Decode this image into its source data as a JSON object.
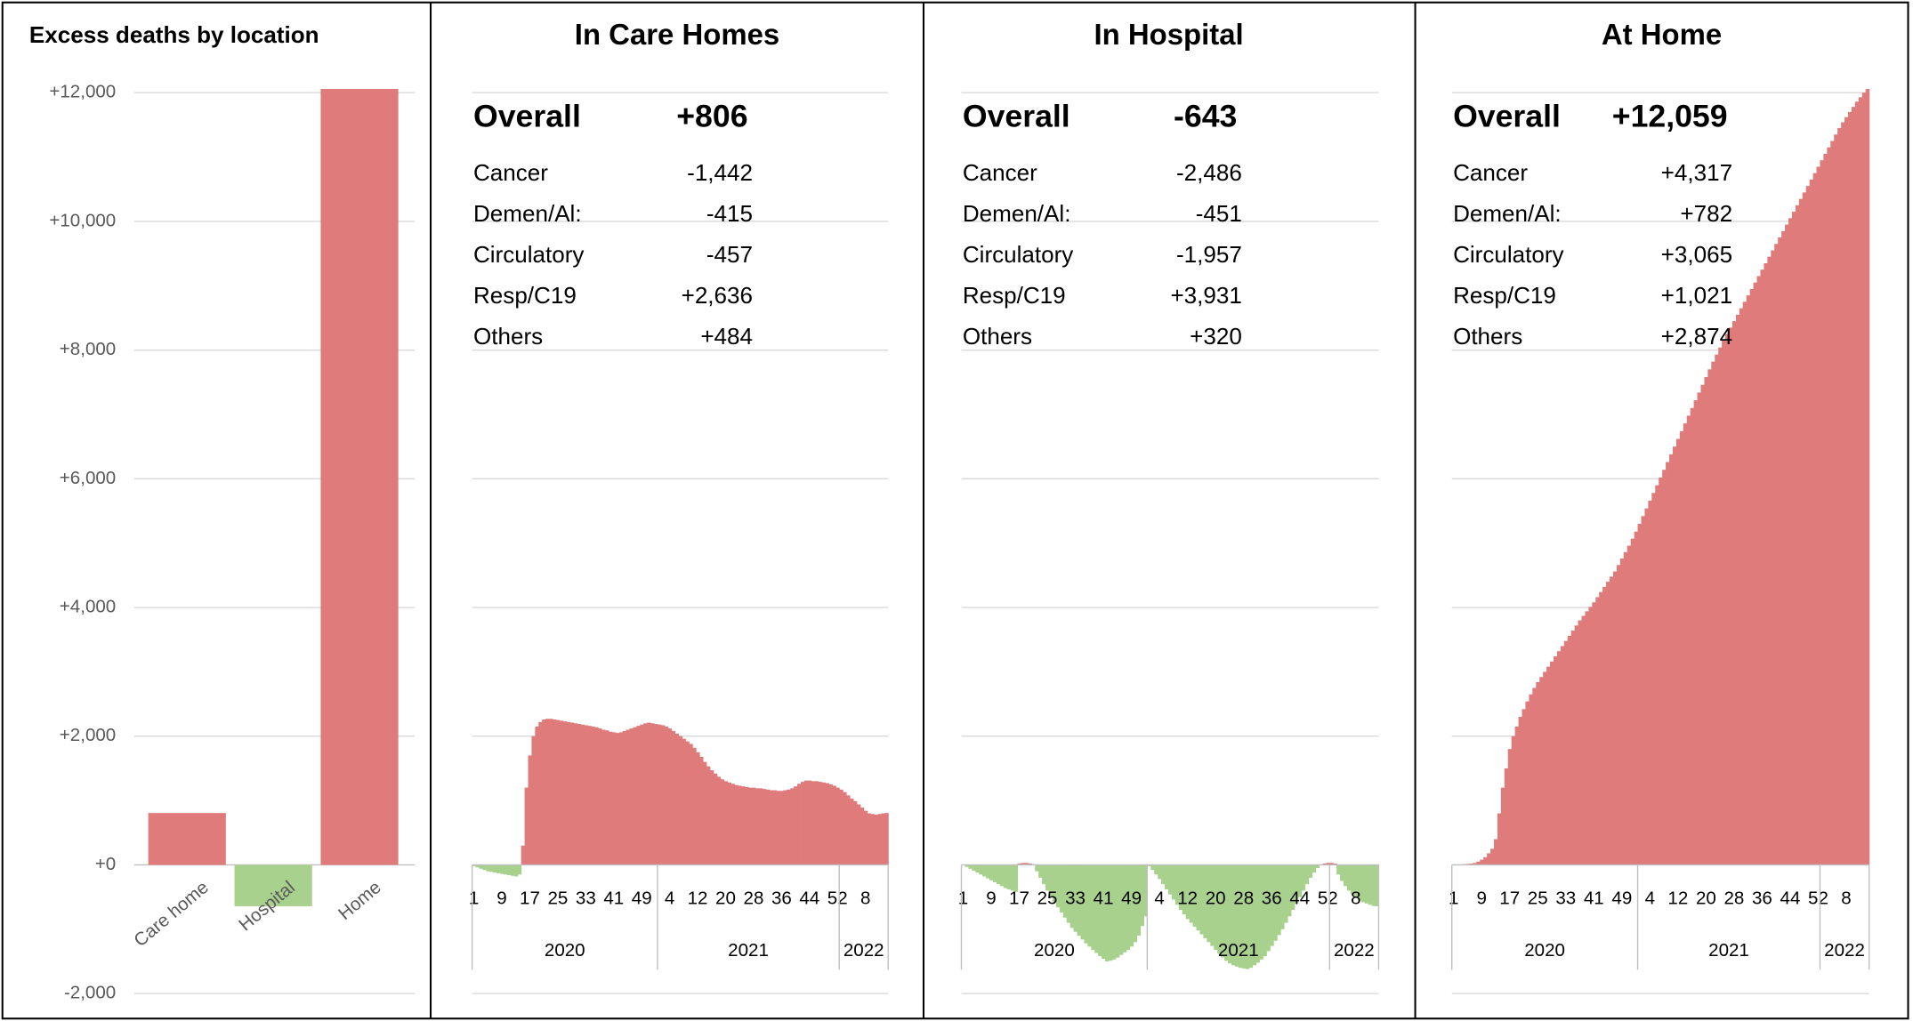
{
  "chart_data": [
    {
      "type": "bar",
      "title": "Excess deaths by location",
      "categories": [
        "Care home",
        "Hospital",
        "Home"
      ],
      "values": [
        806,
        -643,
        12059
      ],
      "colors": {
        "positive": "#e07b7b",
        "negative": "#a9d18e"
      },
      "ylim": [
        -2000,
        12000
      ],
      "yticks": [
        {
          "value": -2000,
          "label": "-2,000"
        },
        {
          "value": 0,
          "label": "+0"
        },
        {
          "value": 2000,
          "label": "+2,000"
        },
        {
          "value": 4000,
          "label": "+4,000"
        },
        {
          "value": 6000,
          "label": "+6,000"
        },
        {
          "value": 8000,
          "label": "+8,000"
        },
        {
          "value": 10000,
          "label": "+10,000"
        },
        {
          "value": 12000,
          "label": "+12,000"
        }
      ],
      "grid": true
    },
    {
      "type": "area",
      "title": "In Care Homes",
      "stats": {
        "overall_label": "Overall",
        "overall": "+806",
        "rows": [
          {
            "label": "Cancer",
            "value": "-1,442"
          },
          {
            "label": "Demen/Al:",
            "value": "-415"
          },
          {
            "label": "Circulatory",
            "value": "-457"
          },
          {
            "label": "Resp/C19",
            "value": "+2,636"
          },
          {
            "label": "Others",
            "value": "+484"
          }
        ]
      },
      "categories": [
        "1",
        null,
        null,
        null,
        null,
        null,
        null,
        null,
        "9",
        null,
        null,
        null,
        null,
        null,
        null,
        null,
        "17",
        null,
        null,
        null,
        null,
        null,
        null,
        null,
        "25",
        null,
        null,
        null,
        null,
        null,
        null,
        null,
        "33",
        null,
        null,
        null,
        null,
        null,
        null,
        null,
        "41",
        null,
        null,
        null,
        null,
        null,
        null,
        null,
        "49",
        null,
        null,
        null,
        null,
        null,
        null,
        null,
        "4",
        null,
        null,
        null,
        null,
        null,
        null,
        null,
        "12",
        null,
        null,
        null,
        null,
        null,
        null,
        null,
        "20",
        null,
        null,
        null,
        null,
        null,
        null,
        null,
        "28",
        null,
        null,
        null,
        null,
        null,
        null,
        null,
        "36",
        null,
        null,
        null,
        null,
        null,
        null,
        null,
        "44",
        null,
        null,
        null,
        null,
        null,
        null,
        null,
        "52",
        null,
        null,
        null,
        null,
        null,
        null,
        null,
        "8",
        null,
        null,
        null,
        null,
        null,
        null
      ],
      "year_groups": [
        {
          "label": "2020",
          "count": 53
        },
        {
          "label": "2021",
          "count": 52
        },
        {
          "label": "2022",
          "count": 14
        }
      ],
      "values": [
        -20,
        -40,
        -60,
        -80,
        -100,
        -110,
        -120,
        -130,
        -140,
        -150,
        -160,
        -170,
        -180,
        -150,
        300,
        1200,
        1700,
        2000,
        2150,
        2220,
        2260,
        2270,
        2270,
        2260,
        2250,
        2240,
        2230,
        2220,
        2210,
        2200,
        2190,
        2180,
        2170,
        2160,
        2150,
        2140,
        2120,
        2100,
        2090,
        2070,
        2060,
        2050,
        2060,
        2080,
        2100,
        2120,
        2140,
        2160,
        2180,
        2200,
        2210,
        2200,
        2190,
        2180,
        2170,
        2150,
        2120,
        2080,
        2040,
        2000,
        1960,
        1920,
        1880,
        1820,
        1750,
        1680,
        1600,
        1530,
        1470,
        1420,
        1370,
        1330,
        1300,
        1280,
        1260,
        1240,
        1230,
        1220,
        1210,
        1200,
        1200,
        1190,
        1190,
        1180,
        1170,
        1160,
        1160,
        1150,
        1150,
        1160,
        1170,
        1190,
        1220,
        1260,
        1290,
        1310,
        1310,
        1300,
        1300,
        1290,
        1280,
        1270,
        1250,
        1230,
        1200,
        1170,
        1130,
        1080,
        1030,
        990,
        940,
        890,
        840,
        800,
        790,
        780,
        790,
        800,
        806
      ],
      "colors": {
        "positive": "#e07b7b",
        "negative": "#a9d18e"
      },
      "ylim": [
        -2000,
        12000
      ],
      "yticks": [
        -2000,
        0,
        2000,
        4000,
        6000,
        8000,
        10000,
        12000
      ],
      "grid": true
    },
    {
      "type": "area",
      "title": "In Hospital",
      "stats": {
        "overall_label": "Overall",
        "overall": "-643",
        "rows": [
          {
            "label": "Cancer",
            "value": "-2,486"
          },
          {
            "label": "Demen/Al:",
            "value": "-451"
          },
          {
            "label": "Circulatory",
            "value": "-1,957"
          },
          {
            "label": "Resp/C19",
            "value": "+3,931"
          },
          {
            "label": "Others",
            "value": "+320"
          }
        ]
      },
      "categories": [
        "1",
        null,
        null,
        null,
        null,
        null,
        null,
        null,
        "9",
        null,
        null,
        null,
        null,
        null,
        null,
        null,
        "17",
        null,
        null,
        null,
        null,
        null,
        null,
        null,
        "25",
        null,
        null,
        null,
        null,
        null,
        null,
        null,
        "33",
        null,
        null,
        null,
        null,
        null,
        null,
        null,
        "41",
        null,
        null,
        null,
        null,
        null,
        null,
        null,
        "49",
        null,
        null,
        null,
        null,
        null,
        null,
        null,
        "4",
        null,
        null,
        null,
        null,
        null,
        null,
        null,
        "12",
        null,
        null,
        null,
        null,
        null,
        null,
        null,
        "20",
        null,
        null,
        null,
        null,
        null,
        null,
        null,
        "28",
        null,
        null,
        null,
        null,
        null,
        null,
        null,
        "36",
        null,
        null,
        null,
        null,
        null,
        null,
        null,
        "44",
        null,
        null,
        null,
        null,
        null,
        null,
        null,
        "52",
        null,
        null,
        null,
        null,
        null,
        null,
        null,
        "8",
        null,
        null,
        null,
        null,
        null,
        null
      ],
      "year_groups": [
        {
          "label": "2020",
          "count": 53
        },
        {
          "label": "2021",
          "count": 52
        },
        {
          "label": "2022",
          "count": 14
        }
      ],
      "values": [
        0,
        -30,
        -60,
        -90,
        -120,
        -150,
        -180,
        -210,
        -240,
        -270,
        -300,
        -330,
        -360,
        -380,
        -400,
        -420,
        20,
        30,
        30,
        20,
        10,
        -100,
        -200,
        -300,
        -400,
        -500,
        -580,
        -660,
        -740,
        -820,
        -900,
        -980,
        -1040,
        -1100,
        -1160,
        -1220,
        -1270,
        -1320,
        -1370,
        -1420,
        -1460,
        -1500,
        -1490,
        -1470,
        -1440,
        -1400,
        -1360,
        -1320,
        -1270,
        -1200,
        -1100,
        -950,
        -800,
        -20,
        -80,
        -150,
        -220,
        -300,
        -380,
        -460,
        -540,
        -620,
        -700,
        -770,
        -840,
        -900,
        -960,
        -1020,
        -1080,
        -1140,
        -1200,
        -1260,
        -1320,
        -1380,
        -1440,
        -1490,
        -1530,
        -1560,
        -1580,
        -1600,
        -1610,
        -1620,
        -1600,
        -1560,
        -1520,
        -1470,
        -1420,
        -1340,
        -1260,
        -1180,
        -1090,
        -1000,
        -900,
        -800,
        -700,
        -600,
        -500,
        -400,
        -300,
        -200,
        -120,
        -50,
        0,
        20,
        30,
        30,
        20,
        -150,
        -250,
        -330,
        -400,
        -460,
        -510,
        -550,
        -580,
        -600,
        -620,
        -640,
        -643
      ],
      "colors": {
        "positive": "#e07b7b",
        "negative": "#a9d18e"
      },
      "ylim": [
        -2000,
        12000
      ],
      "yticks": [
        -2000,
        0,
        2000,
        4000,
        6000,
        8000,
        10000,
        12000
      ],
      "grid": true
    },
    {
      "type": "area",
      "title": "At Home",
      "stats": {
        "overall_label": "Overall",
        "overall": "+12,059",
        "rows": [
          {
            "label": "Cancer",
            "value": "+4,317"
          },
          {
            "label": "Demen/Al:",
            "value": "+782"
          },
          {
            "label": "Circulatory",
            "value": "+3,065"
          },
          {
            "label": "Resp/C19",
            "value": "+1,021"
          },
          {
            "label": "Others",
            "value": "+2,874"
          }
        ]
      },
      "categories": [
        "1",
        null,
        null,
        null,
        null,
        null,
        null,
        null,
        "9",
        null,
        null,
        null,
        null,
        null,
        null,
        null,
        "17",
        null,
        null,
        null,
        null,
        null,
        null,
        null,
        "25",
        null,
        null,
        null,
        null,
        null,
        null,
        null,
        "33",
        null,
        null,
        null,
        null,
        null,
        null,
        null,
        "41",
        null,
        null,
        null,
        null,
        null,
        null,
        null,
        "49",
        null,
        null,
        null,
        null,
        null,
        null,
        null,
        "4",
        null,
        null,
        null,
        null,
        null,
        null,
        null,
        "12",
        null,
        null,
        null,
        null,
        null,
        null,
        null,
        "20",
        null,
        null,
        null,
        null,
        null,
        null,
        null,
        "28",
        null,
        null,
        null,
        null,
        null,
        null,
        null,
        "36",
        null,
        null,
        null,
        null,
        null,
        null,
        null,
        "44",
        null,
        null,
        null,
        null,
        null,
        null,
        null,
        "52",
        null,
        null,
        null,
        null,
        null,
        null,
        null,
        "8",
        null,
        null,
        null,
        null,
        null,
        null
      ],
      "year_groups": [
        {
          "label": "2020",
          "count": 53
        },
        {
          "label": "2021",
          "count": 52
        },
        {
          "label": "2022",
          "count": 14
        }
      ],
      "values": [
        0,
        0,
        5,
        10,
        15,
        20,
        30,
        50,
        80,
        120,
        180,
        250,
        400,
        800,
        1200,
        1500,
        1800,
        2000,
        2150,
        2300,
        2420,
        2540,
        2650,
        2750,
        2840,
        2920,
        3000,
        3080,
        3160,
        3240,
        3320,
        3400,
        3480,
        3560,
        3640,
        3720,
        3800,
        3870,
        3940,
        4010,
        4080,
        4160,
        4240,
        4320,
        4400,
        4480,
        4560,
        4660,
        4760,
        4860,
        4960,
        5070,
        5180,
        5300,
        5420,
        5540,
        5660,
        5780,
        5900,
        6020,
        6140,
        6260,
        6380,
        6500,
        6620,
        6740,
        6860,
        6980,
        7100,
        7220,
        7340,
        7460,
        7580,
        7700,
        7820,
        7930,
        8040,
        8150,
        8250,
        8350,
        8450,
        8550,
        8650,
        8750,
        8850,
        8950,
        9050,
        9150,
        9250,
        9350,
        9450,
        9550,
        9650,
        9750,
        9850,
        9950,
        10050,
        10150,
        10250,
        10350,
        10450,
        10550,
        10650,
        10750,
        10850,
        10950,
        11050,
        11150,
        11250,
        11350,
        11450,
        11540,
        11620,
        11700,
        11780,
        11860,
        11930,
        12000,
        12059
      ],
      "colors": {
        "positive": "#e07b7b",
        "negative": "#a9d18e"
      },
      "ylim": [
        -2000,
        12000
      ],
      "yticks": [
        -2000,
        0,
        2000,
        4000,
        6000,
        8000,
        10000,
        12000
      ],
      "grid": true
    }
  ]
}
